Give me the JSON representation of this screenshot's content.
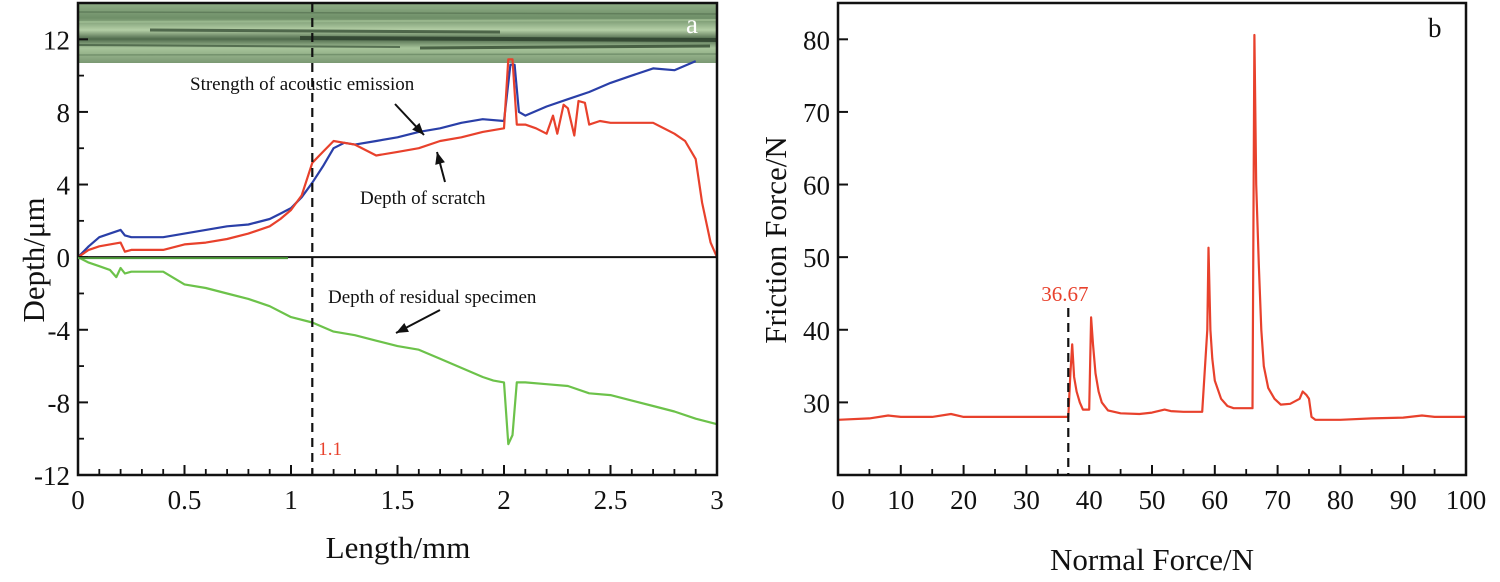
{
  "chart_data": [
    {
      "panel": "a",
      "type": "line",
      "xlabel": "Length/mm",
      "ylabel": "Depth/μm",
      "xlim": [
        0,
        3
      ],
      "ylim": [
        -12,
        14
      ],
      "xticks": [
        0,
        0.5,
        1,
        1.5,
        2,
        2.5,
        3
      ],
      "xtick_labels": [
        "0",
        "0.5",
        "1",
        "1.5",
        "2",
        "2.5",
        "3"
      ],
      "yticks": [
        -12,
        -8,
        -4,
        0,
        4,
        8,
        12
      ],
      "ytick_labels": [
        "-12",
        "-8",
        "-4",
        "0",
        "4",
        "8",
        "12"
      ],
      "grid": false,
      "inset_image": "micrograph of scratch track (top strip)",
      "marker_line": {
        "x": 1.1,
        "label": "1.1",
        "style": "dashed"
      },
      "annotations": [
        {
          "text": "Strength of acoustic emission",
          "target_series": "Strength of acoustic emission"
        },
        {
          "text": "Depth of scratch",
          "target_series": "Depth of scratch"
        },
        {
          "text": "Depth of residual specimen",
          "target_series": "Depth of residual specimen"
        }
      ],
      "series": [
        {
          "name": "Strength of acoustic emission",
          "color": "#2a3fa8",
          "x": [
            0,
            0.05,
            0.1,
            0.15,
            0.2,
            0.22,
            0.25,
            0.3,
            0.4,
            0.5,
            0.6,
            0.7,
            0.8,
            0.9,
            0.95,
            1.0,
            1.05,
            1.1,
            1.15,
            1.2,
            1.25,
            1.3,
            1.4,
            1.5,
            1.6,
            1.7,
            1.8,
            1.9,
            2.0,
            2.03,
            2.05,
            2.07,
            2.1,
            2.2,
            2.3,
            2.4,
            2.5,
            2.6,
            2.7,
            2.8,
            2.9
          ],
          "y": [
            0,
            0.6,
            1.1,
            1.3,
            1.5,
            1.2,
            1.1,
            1.1,
            1.1,
            1.3,
            1.5,
            1.7,
            1.8,
            2.1,
            2.4,
            2.7,
            3.3,
            4.1,
            5.0,
            6.0,
            6.3,
            6.2,
            6.4,
            6.6,
            6.9,
            7.1,
            7.4,
            7.6,
            7.5,
            10.6,
            10.6,
            8.0,
            7.8,
            8.3,
            8.7,
            9.1,
            9.6,
            10.0,
            10.4,
            10.3,
            10.8
          ]
        },
        {
          "name": "Depth of scratch",
          "color": "#e8412c",
          "x": [
            0,
            0.05,
            0.1,
            0.15,
            0.2,
            0.22,
            0.25,
            0.3,
            0.4,
            0.5,
            0.6,
            0.7,
            0.8,
            0.9,
            0.95,
            1.0,
            1.05,
            1.1,
            1.15,
            1.2,
            1.25,
            1.3,
            1.4,
            1.5,
            1.6,
            1.7,
            1.8,
            1.9,
            2.0,
            2.02,
            2.04,
            2.06,
            2.1,
            2.15,
            2.2,
            2.23,
            2.25,
            2.28,
            2.3,
            2.33,
            2.35,
            2.38,
            2.4,
            2.45,
            2.5,
            2.6,
            2.7,
            2.8,
            2.85,
            2.9,
            2.93,
            2.97,
            3.0
          ],
          "y": [
            0,
            0.4,
            0.6,
            0.7,
            0.8,
            0.3,
            0.4,
            0.4,
            0.4,
            0.7,
            0.8,
            1.0,
            1.3,
            1.7,
            2.1,
            2.6,
            3.4,
            5.2,
            5.8,
            6.4,
            6.3,
            6.2,
            5.6,
            5.8,
            6.0,
            6.4,
            6.6,
            6.9,
            7.1,
            10.9,
            10.9,
            7.3,
            7.3,
            7.1,
            6.8,
            7.8,
            6.8,
            8.4,
            8.2,
            6.7,
            8.6,
            8.5,
            7.3,
            7.5,
            7.4,
            7.4,
            7.4,
            6.8,
            6.4,
            5.4,
            3.0,
            0.8,
            0
          ]
        },
        {
          "name": "Depth of residual specimen",
          "color": "#6cc24a",
          "x": [
            0,
            0.05,
            0.1,
            0.15,
            0.18,
            0.2,
            0.22,
            0.25,
            0.3,
            0.4,
            0.5,
            0.6,
            0.7,
            0.8,
            0.9,
            1.0,
            1.1,
            1.2,
            1.3,
            1.4,
            1.5,
            1.6,
            1.7,
            1.8,
            1.9,
            1.95,
            2.0,
            2.02,
            2.04,
            2.06,
            2.1,
            2.2,
            2.3,
            2.4,
            2.5,
            2.6,
            2.7,
            2.8,
            2.9,
            3.0
          ],
          "y": [
            0,
            -0.3,
            -0.5,
            -0.7,
            -1.1,
            -0.6,
            -0.9,
            -0.8,
            -0.8,
            -0.8,
            -1.5,
            -1.7,
            -2.0,
            -2.3,
            -2.7,
            -3.3,
            -3.6,
            -4.1,
            -4.3,
            -4.6,
            -4.9,
            -5.1,
            -5.6,
            -6.1,
            -6.6,
            -6.8,
            -6.9,
            -10.3,
            -9.8,
            -6.9,
            -6.9,
            -7.0,
            -7.1,
            -7.5,
            -7.6,
            -7.9,
            -8.2,
            -8.5,
            -8.9,
            -9.2
          ]
        }
      ]
    },
    {
      "panel": "b",
      "type": "line",
      "xlabel": "Normal Force/N",
      "ylabel": "Friction Force/N",
      "xlim": [
        0,
        100
      ],
      "ylim": [
        20,
        85
      ],
      "xticks": [
        0,
        10,
        20,
        30,
        40,
        50,
        60,
        70,
        80,
        90,
        100
      ],
      "xtick_labels": [
        "0",
        "10",
        "20",
        "30",
        "40",
        "50",
        "60",
        "70",
        "80",
        "90",
        "100"
      ],
      "yticks": [
        30,
        40,
        50,
        60,
        70,
        80
      ],
      "ytick_labels": [
        "30",
        "40",
        "50",
        "60",
        "70",
        "80"
      ],
      "grid": false,
      "marker_line": {
        "x": 36.67,
        "label": "36.67",
        "style": "dashed"
      },
      "series": [
        {
          "name": "Friction force",
          "color": "#e8412c",
          "x": [
            0,
            5,
            8,
            10,
            15,
            18,
            20,
            25,
            30,
            36.67,
            37,
            37.3,
            37.6,
            38,
            38.5,
            39,
            40,
            40.3,
            40.6,
            41,
            41.5,
            42,
            43,
            45,
            48,
            50,
            52,
            53,
            55,
            58,
            58.8,
            59.0,
            59.3,
            59.6,
            60,
            61,
            62,
            63,
            66,
            66.3,
            66.6,
            67.0,
            67.4,
            67.8,
            68.5,
            69.5,
            70.5,
            72,
            73.5,
            74,
            74.6,
            75.0,
            75.4,
            76,
            80,
            85,
            90,
            93,
            95,
            100
          ],
          "y": [
            27.6,
            27.8,
            28.2,
            28.0,
            28.0,
            28.4,
            28.0,
            28.0,
            28.0,
            28.0,
            34.0,
            38.0,
            33.5,
            31.5,
            30.0,
            29.0,
            29.0,
            41.7,
            38.0,
            34.0,
            31.5,
            30.0,
            28.9,
            28.5,
            28.4,
            28.6,
            29.0,
            28.8,
            28.7,
            28.7,
            40.0,
            51.3,
            40.0,
            36.0,
            33.0,
            30.5,
            29.5,
            29.2,
            29.2,
            80.6,
            60.0,
            49.0,
            40.0,
            35.0,
            32.0,
            30.5,
            29.7,
            29.8,
            30.5,
            31.5,
            31.0,
            30.5,
            28.0,
            27.6,
            27.6,
            27.8,
            27.9,
            28.2,
            28.0,
            28.0
          ]
        }
      ]
    }
  ]
}
